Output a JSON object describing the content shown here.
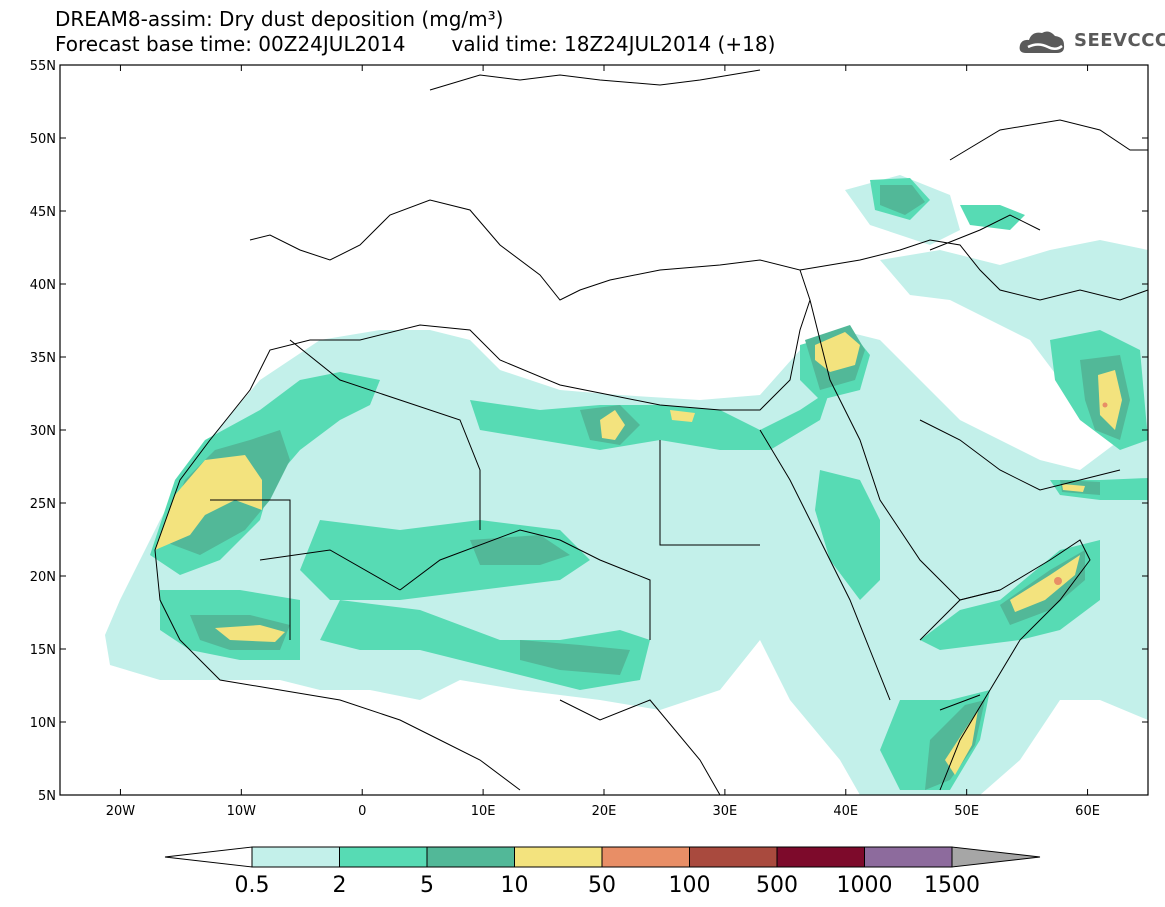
{
  "header": {
    "line1": "DREAM8-assim: Dry dust deposition (mg/m³)",
    "base": "Forecast base time: 00Z24JUL2014",
    "valid": "valid time: 18Z24JUL2014 (+18)"
  },
  "logo": {
    "text": "SEEVCCC",
    "icon": "cloud-icon"
  },
  "lat_labels": [
    "55N",
    "50N",
    "45N",
    "40N",
    "35N",
    "30N",
    "25N",
    "20N",
    "15N",
    "10N",
    "5N"
  ],
  "lat_values": [
    55,
    50,
    45,
    40,
    35,
    30,
    25,
    20,
    15,
    10,
    5
  ],
  "lon_labels": [
    "20W",
    "10W",
    "0",
    "10E",
    "20E",
    "30E",
    "40E",
    "50E",
    "60E"
  ],
  "lon_values": [
    -20,
    -10,
    0,
    10,
    20,
    30,
    40,
    50,
    60
  ],
  "map": {
    "lon_min": -25,
    "lon_max": 65,
    "lat_min": 5,
    "lat_max": 55
  },
  "colorbar": {
    "labels": [
      "0.5",
      "2",
      "5",
      "10",
      "50",
      "100",
      "500",
      "1000",
      "1500"
    ],
    "colors": [
      "#c3f0ea",
      "#57dbb4",
      "#52b898",
      "#f3e37e",
      "#e88e66",
      "#a94a3e",
      "#7d0a2b",
      "#8d6b9d"
    ],
    "low_arrow_color": "#ffffff",
    "high_arrow_color": "#a6a6a6"
  }
}
